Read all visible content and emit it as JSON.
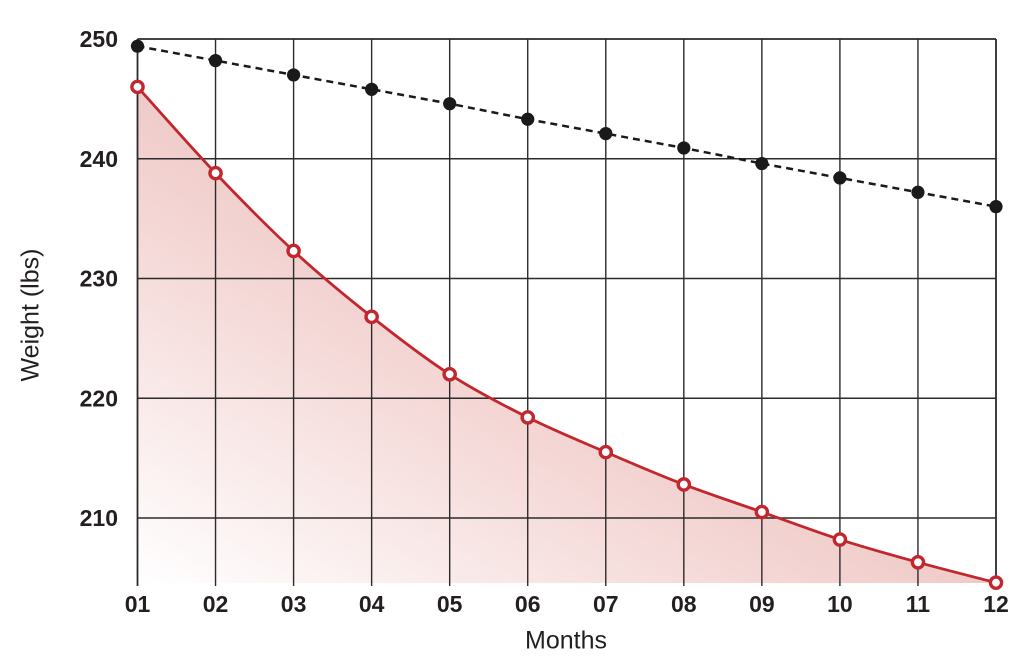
{
  "chart_data": {
    "type": "line",
    "title": "",
    "xlabel": "Months",
    "ylabel": "Weight (lbs)",
    "x": [
      1,
      2,
      3,
      4,
      5,
      6,
      7,
      8,
      9,
      10,
      11,
      12
    ],
    "x_tick_labels": [
      "01",
      "02",
      "03",
      "04",
      "05",
      "06",
      "07",
      "08",
      "09",
      "10",
      "11",
      "12"
    ],
    "y_ticks": [
      250,
      240,
      230,
      220,
      210
    ],
    "y_tick_labels": [
      "250",
      "240",
      "230",
      "220",
      "210"
    ],
    "xlim": [
      1,
      12
    ],
    "ylim": [
      204.5,
      250
    ],
    "grid": true,
    "legend": "none",
    "series": [
      {
        "name": "black-dashed-series",
        "line_style": "dashed",
        "color": "#1a1a1a",
        "marker": "filled-circle",
        "values": [
          249.4,
          248.2,
          247.0,
          245.8,
          244.6,
          243.3,
          242.1,
          240.9,
          239.6,
          238.4,
          237.2,
          236.0
        ]
      },
      {
        "name": "red-area-series",
        "line_style": "solid",
        "color": "#c1272d",
        "marker": "open-circle",
        "area_fill": true,
        "values": [
          246.0,
          238.8,
          232.3,
          226.8,
          222.0,
          218.4,
          215.5,
          212.8,
          210.5,
          208.2,
          206.3,
          204.6
        ]
      }
    ],
    "colors": {
      "grid": "#2d2a2b",
      "text": "#231f20",
      "red_line": "#c1272d",
      "black_line": "#1a1a1a",
      "area_gradient_start": "#ffffff",
      "area_gradient_mid": "#f3d4d2",
      "area_gradient_end": "#d89b95"
    }
  }
}
